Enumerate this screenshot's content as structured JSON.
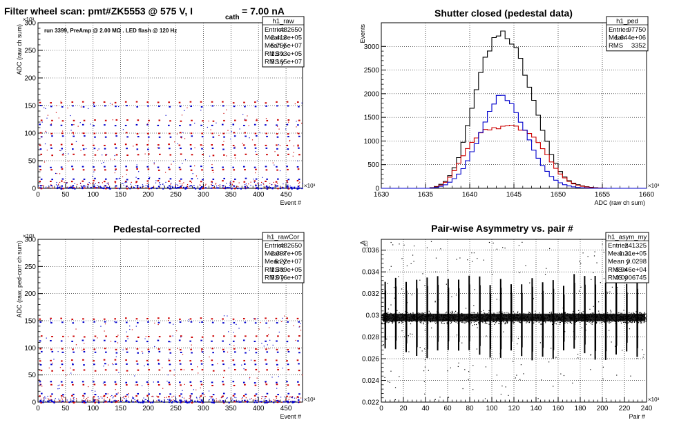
{
  "chart_data": [
    {
      "type": "scatter",
      "title": "Filter wheel scan: pmt#ZK5553 @   575 V, I",
      "title_sub": "cath",
      "title_tail": " = 7.00 nA",
      "annotation": "run 3399, PreAmp @ 2.00 MΩ . LED flash @  120 Hz",
      "xlabel": "Event #",
      "ylabel": "ADC (raw ch sum)",
      "x_multiplier": "×10³",
      "y_multiplier": "×10³",
      "xlim": [
        0,
        480
      ],
      "ylim": [
        0,
        300
      ],
      "xticks": [
        "0",
        "50",
        "100",
        "150",
        "200",
        "250",
        "300",
        "350",
        "400",
        "450"
      ],
      "yticks": [
        "0",
        "50",
        "100",
        "150",
        "200",
        "250",
        "300"
      ],
      "grid": true,
      "stats": {
        "name": "h1_raw",
        "rows": [
          [
            "Entries",
            "482650"
          ],
          [
            "Mean x",
            "2.413e+05"
          ],
          [
            "Mean y",
            "5.755e+07"
          ],
          [
            "RMS x",
            "1.393e+05"
          ],
          [
            "RMS y",
            "5.165e+07"
          ]
        ]
      },
      "levels": [
        157,
        150,
        124,
        116,
        101,
        95,
        80,
        73,
        62,
        40,
        35,
        18,
        14,
        5,
        1
      ],
      "period": 19.5,
      "colors": {
        "red": "#cc0000",
        "blue": "#0000cc"
      }
    },
    {
      "type": "histogram",
      "title": "Shutter closed (pedestal data)",
      "xlabel": "ADC (raw ch sum)",
      "ylabel": "Events",
      "x_multiplier": "×10³",
      "xlim": [
        1630,
        1660
      ],
      "ylim": [
        0,
        3500
      ],
      "xticks": [
        "1630",
        "1635",
        "1640",
        "1645",
        "1650",
        "1655",
        "1660"
      ],
      "yticks": [
        "0",
        "500",
        "1000",
        "1500",
        "2000",
        "2500",
        "3000"
      ],
      "grid": true,
      "stats": {
        "name": "h1_ped",
        "rows": [
          [
            "Entries",
            "97750"
          ],
          [
            "Mean",
            "1.644e+06"
          ],
          [
            "RMS",
            "3352"
          ]
        ]
      },
      "series": [
        {
          "color": "#000000",
          "curve": [
            [
              1635.5,
              0
            ],
            [
              1636.5,
              50
            ],
            [
              1637.5,
              180
            ],
            [
              1638.5,
              520
            ],
            [
              1639.5,
              1100
            ],
            [
              1640.5,
              1900
            ],
            [
              1641.5,
              2600
            ],
            [
              1642.5,
              3050
            ],
            [
              1643.5,
              3300
            ],
            [
              1644.5,
              3200
            ],
            [
              1645.5,
              2850
            ],
            [
              1646.5,
              2300
            ],
            [
              1647.5,
              1700
            ],
            [
              1648.5,
              1100
            ],
            [
              1649.5,
              600
            ],
            [
              1650.5,
              280
            ],
            [
              1651.5,
              120
            ],
            [
              1652.5,
              60
            ],
            [
              1653.5,
              25
            ],
            [
              1654.5,
              8
            ],
            [
              1655.5,
              0
            ]
          ]
        },
        {
          "color": "#cc0000",
          "curve": [
            [
              1635.5,
              0
            ],
            [
              1636.5,
              40
            ],
            [
              1637.5,
              160
            ],
            [
              1638.5,
              450
            ],
            [
              1639.5,
              780
            ],
            [
              1640.5,
              1050
            ],
            [
              1641.5,
              1200
            ],
            [
              1642.5,
              1270
            ],
            [
              1643.5,
              1290
            ],
            [
              1644.5,
              1320
            ],
            [
              1645.5,
              1280
            ],
            [
              1646.5,
              1180
            ],
            [
              1647.5,
              1020
            ],
            [
              1648.5,
              780
            ],
            [
              1649.5,
              480
            ],
            [
              1650.5,
              250
            ],
            [
              1651.5,
              110
            ],
            [
              1652.5,
              50
            ],
            [
              1653.5,
              20
            ],
            [
              1654.5,
              5
            ],
            [
              1655.5,
              0
            ]
          ]
        },
        {
          "color": "#0000cc",
          "curve": [
            [
              1635.5,
              0
            ],
            [
              1636.5,
              25
            ],
            [
              1637.5,
              90
            ],
            [
              1638.5,
              240
            ],
            [
              1639.5,
              480
            ],
            [
              1640.5,
              850
            ],
            [
              1641.5,
              1300
            ],
            [
              1642.5,
              1750
            ],
            [
              1643.5,
              2020
            ],
            [
              1644.5,
              1850
            ],
            [
              1645.5,
              1500
            ],
            [
              1646.5,
              1100
            ],
            [
              1647.5,
              720
            ],
            [
              1648.5,
              400
            ],
            [
              1649.5,
              200
            ],
            [
              1650.5,
              90
            ],
            [
              1651.5,
              35
            ],
            [
              1652.5,
              12
            ],
            [
              1653.5,
              4
            ],
            [
              1654.5,
              0
            ]
          ]
        }
      ]
    },
    {
      "type": "scatter",
      "title": "Pedestal-corrected",
      "xlabel": "Event #",
      "ylabel": "ADC (raw, ped-corr ch sum)",
      "x_multiplier": "×10³",
      "y_multiplier": "×10³",
      "xlim": [
        0,
        480
      ],
      "ylim": [
        0,
        300
      ],
      "xticks": [
        "0",
        "50",
        "100",
        "150",
        "200",
        "250",
        "300",
        "350",
        "400",
        "450"
      ],
      "yticks": [
        "0",
        "50",
        "100",
        "150",
        "200",
        "250",
        "300"
      ],
      "grid": true,
      "stats": {
        "name": "h1_rawCor",
        "rows": [
          [
            "Entries",
            "482650"
          ],
          [
            "Mean x",
            "2.397e+05"
          ],
          [
            "Mean y",
            "6.22e+07"
          ],
          [
            "RMS x",
            "1.389e+05"
          ],
          [
            "RMS y",
            "5.076e+07"
          ]
        ]
      },
      "levels": [
        155,
        148,
        122,
        114,
        99,
        93,
        78,
        71,
        60,
        38,
        33,
        16,
        12,
        4,
        1
      ],
      "period": 19.5,
      "colors": {
        "red": "#cc0000",
        "blue": "#0000cc"
      }
    },
    {
      "type": "scatter",
      "title": "Pair-wise Asymmetry vs. pair #",
      "xlabel": "Pair #",
      "ylabel": "A",
      "ylabel_sub": "LED",
      "x_multiplier": "×10³",
      "xlim": [
        0,
        240
      ],
      "ylim": [
        0.022,
        0.037
      ],
      "xticks": [
        "0",
        "20",
        "40",
        "60",
        "80",
        "100",
        "120",
        "140",
        "160",
        "180",
        "200",
        "220",
        "240"
      ],
      "yticks": [
        "0.022",
        "0.024",
        "0.026",
        "0.028",
        "0.03",
        "0.032",
        "0.034",
        "0.036"
      ],
      "grid": true,
      "stats": {
        "name": "h1_asym_my",
        "rows": [
          [
            "Entries",
            "241325"
          ],
          [
            "Mean x",
            "1.21e+05"
          ],
          [
            "Mean y",
            "0.0298"
          ],
          [
            "RMS x",
            "6.946e+04"
          ],
          [
            "RMS y",
            "0.0006745"
          ]
        ]
      },
      "band_center": 0.0298,
      "band_width": 0.0005,
      "spike_period": 9.5,
      "spike_high": 0.0332,
      "spike_low": 0.0264
    }
  ]
}
